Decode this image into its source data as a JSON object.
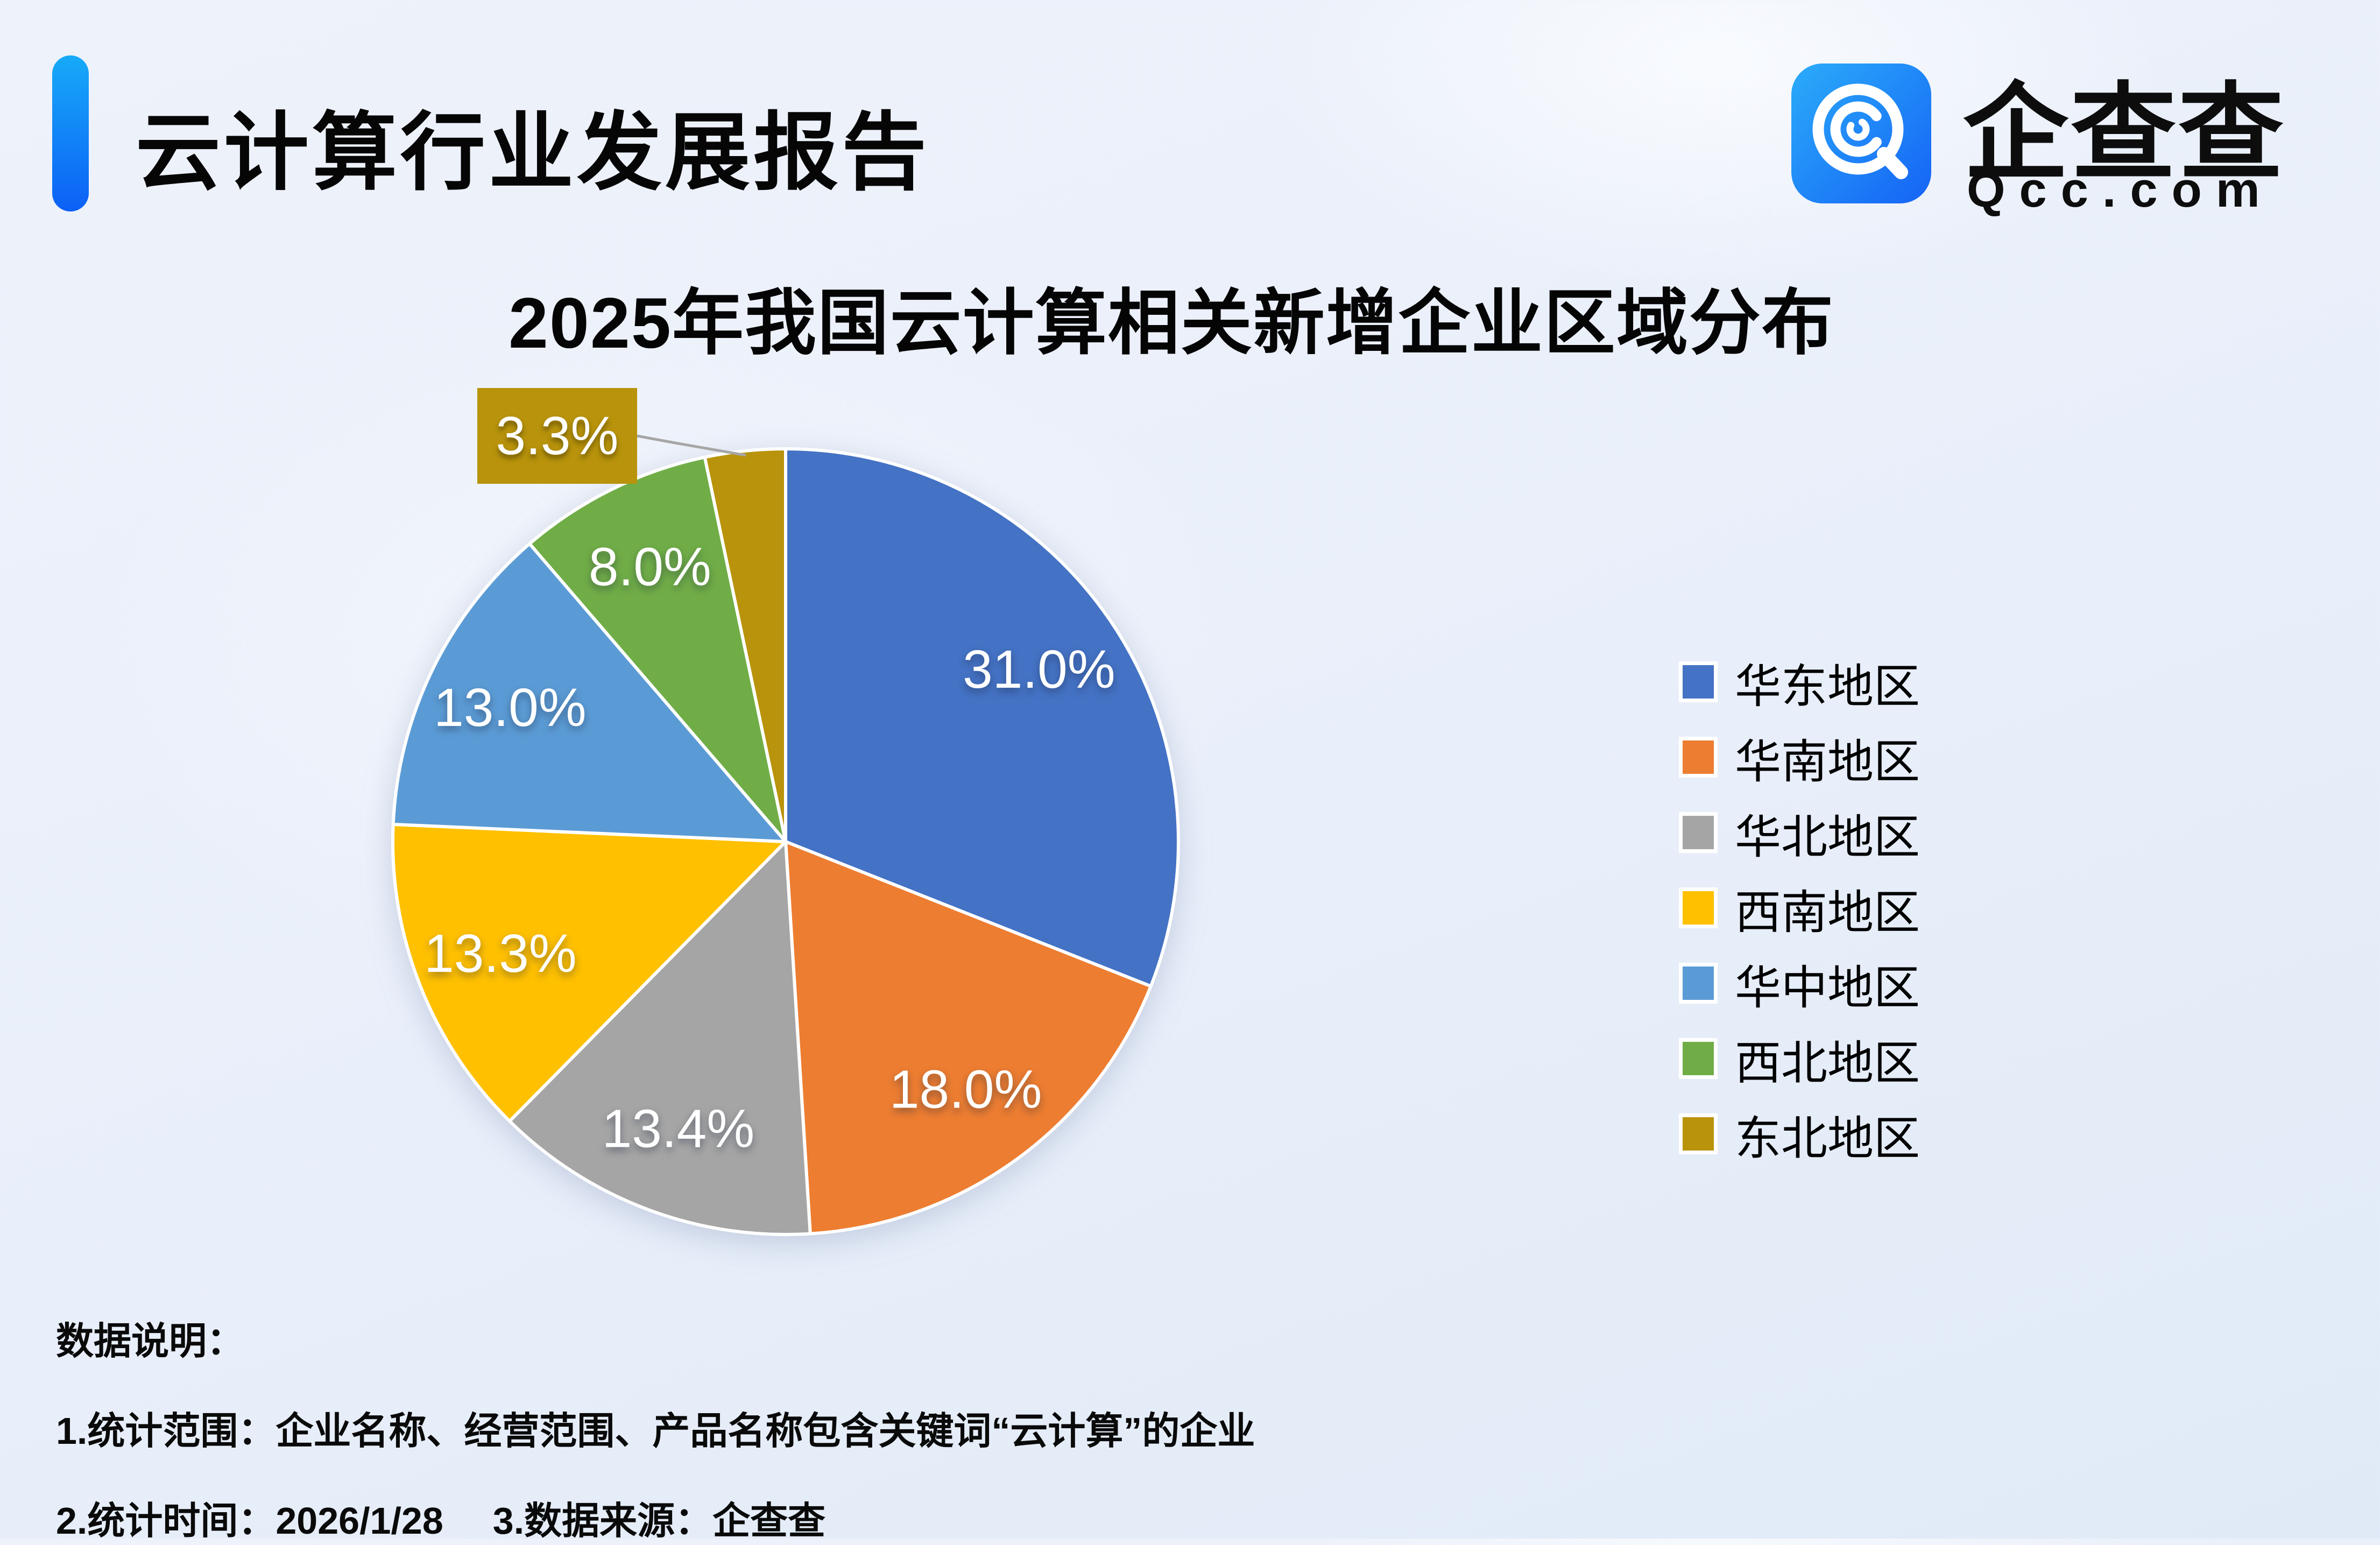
{
  "page": {
    "title": "云计算行业发展报告"
  },
  "brand": {
    "name": "企查查",
    "domain": "Qcc.com"
  },
  "chart_data": {
    "type": "pie",
    "title": "2025年我国云计算相关新增企业区域分布",
    "categories": [
      "华东地区",
      "华南地区",
      "华北地区",
      "西南地区",
      "华中地区",
      "西北地区",
      "东北地区"
    ],
    "values": [
      31.0,
      18.0,
      13.4,
      13.3,
      13.0,
      8.0,
      3.3
    ],
    "labels": [
      "31.0%",
      "18.0%",
      "13.4%",
      "13.3%",
      "13.0%",
      "8.0%",
      "3.3%"
    ],
    "colors": [
      "#4472C4",
      "#ED7D31",
      "#A5A5A5",
      "#FFC000",
      "#5B9BD5",
      "#70AD47",
      "#B8930B"
    ],
    "start_angle_deg": 0,
    "direction": "clockwise",
    "legend_position": "right",
    "grid": false,
    "callout": {
      "category": "东北地区",
      "index": 6,
      "label": "3.3%"
    }
  },
  "notes": {
    "heading": "数据说明：",
    "line1": "1.统计范围：企业名称、经营范围、产品名称包含关键词“云计算”的企业",
    "line2_items": [
      "2.统计时间：2026/1/28",
      "3.数据来源：企查查"
    ]
  },
  "colors": {
    "accent_bar_top": "#17aaf8",
    "accent_bar_bottom": "#0c60f6",
    "logo_bg_top": "#2bacfa",
    "logo_bg_bottom": "#1563f5",
    "callout_bg": "#B8930B",
    "leader_line": "#a6a6a6",
    "text": "#0a0a0a"
  }
}
